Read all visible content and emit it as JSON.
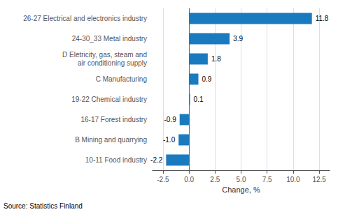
{
  "chart_data": {
    "type": "bar",
    "orientation": "horizontal",
    "categories": [
      "10-11 Food industry",
      "B Mining and quarrying",
      "16-17 Forest industry",
      "19-22 Chemical industry",
      "C Manufacturing",
      "D Eletricity, gas, steam and\nair conditioning supply",
      "24-30_33 Metal industry",
      "26-27 Electrical and electronics industry"
    ],
    "values": [
      -2.2,
      -1.0,
      -0.9,
      0.1,
      0.9,
      1.8,
      3.9,
      11.8
    ],
    "value_labels": [
      "-2.2",
      "-1.0",
      "-0.9",
      "0.1",
      "0.9",
      "1.8",
      "3.9",
      "11.8"
    ],
    "data_labels": true,
    "color": "#1a7abf",
    "xlabel": "Change, %",
    "xlim": [
      -3.5,
      13.5
    ],
    "xticks": [
      -2.5,
      {
        "value": 0.0,
        "label": "0.0"
      },
      2.5,
      {
        "value": 5.0,
        "label": "5.0"
      },
      7.5,
      {
        "value": 10.0,
        "label": "10.0"
      },
      12.5
    ],
    "grid": true,
    "annotations": [
      "Source: Statistics Finland"
    ]
  }
}
